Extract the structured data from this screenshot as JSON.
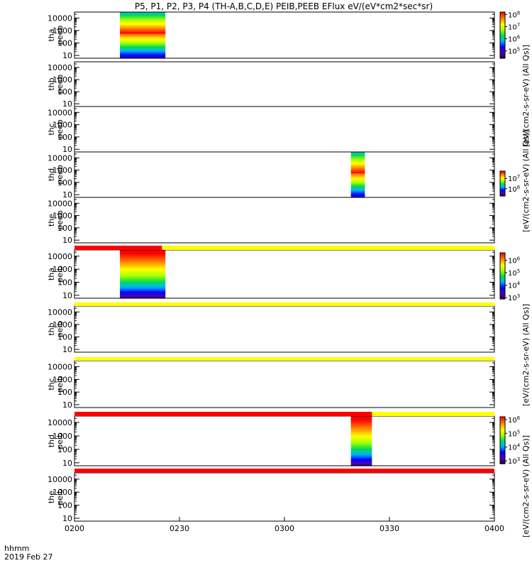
{
  "title": "P5, P1, P2, P3, P4 (TH-A,B,C,D,E) PEIB,PEEB EFlux eV/(eV*cm2*sec*sr)",
  "time_axis": {
    "ticks": [
      "0200",
      "0230",
      "0300",
      "0330",
      "0400"
    ],
    "corner_label": "hhmm",
    "date_label": "2019 Feb 27"
  },
  "colors": {
    "flag_red": "#ff0000",
    "flag_yellow": "#ffff00",
    "frame": "#000000"
  },
  "chart_data": {
    "type": "heatmap",
    "x_unit": "hhmm",
    "x_range": [
      "0200",
      "0400"
    ],
    "y_ticks": [
      "10",
      "100",
      "1000",
      "10000"
    ],
    "y_scale": "log",
    "panels": [
      {
        "label_line1": "tha",
        "label_line2": "peeb",
        "data_start": "0213",
        "data_end": "0226",
        "colorbar": "cb_e1"
      },
      {
        "label_line1": "thb",
        "label_line2": "peeb"
      },
      {
        "label_line1": "thc",
        "label_line2": "peeb"
      },
      {
        "label_line1": "thd",
        "label_line2": "peeb",
        "data_start": "0319",
        "data_end": "0323",
        "colorbar": "cb_e2"
      },
      {
        "label_line1": "the",
        "label_line2": "peeb"
      },
      {
        "label_line1": "tha",
        "label_line2": "peib",
        "data_start": "0213",
        "data_end": "0226",
        "colorbar": "cb_i1"
      },
      {
        "label_line1": "thb",
        "label_line2": "peib"
      },
      {
        "label_line1": "thc",
        "label_line2": "peib"
      },
      {
        "label_line1": "thd",
        "label_line2": "peib",
        "data_start": "0319",
        "data_end": "0325",
        "colorbar": "cb_i2"
      },
      {
        "label_line1": "the",
        "label_line2": "peib"
      }
    ],
    "flag_bars": [
      {
        "after_panel": 5,
        "red_start": "0200",
        "red_end": "0225",
        "yellow_start": "0225",
        "yellow_end": "0400"
      },
      {
        "after_panel": 6,
        "red_start": null,
        "red_end": null,
        "yellow_start": "0200",
        "yellow_end": "0400"
      },
      {
        "after_panel": 7,
        "red_start": null,
        "red_end": null,
        "yellow_start": "0200",
        "yellow_end": "0400"
      },
      {
        "after_panel": 8,
        "red_start": "0200",
        "red_end": "0325",
        "yellow_start": "0325",
        "yellow_end": "0400"
      },
      {
        "after_panel": 9,
        "red_start": "0200",
        "red_end": "0400",
        "yellow_start": null,
        "yellow_end": null
      }
    ],
    "colorbars": {
      "cb_e1": {
        "ticks": [
          {
            "b": "10",
            "e": "5"
          },
          {
            "b": "10",
            "e": "6"
          },
          {
            "b": "10",
            "e": "7"
          },
          {
            "b": "10",
            "e": "8"
          }
        ],
        "log_range": [
          4.4,
          8.2
        ]
      },
      "cb_e2": {
        "ticks": [
          {
            "b": "10",
            "e": "6"
          },
          {
            "b": "10",
            "e": "7"
          }
        ],
        "log_range": [
          5.3,
          7.7
        ]
      },
      "cb_i1": {
        "ticks": [
          {
            "b": "10",
            "e": "3"
          },
          {
            "b": "10",
            "e": "4"
          },
          {
            "b": "10",
            "e": "5"
          },
          {
            "b": "10",
            "e": "6"
          }
        ],
        "log_range": [
          2.9,
          6.6
        ]
      },
      "cb_i2": {
        "ticks": [
          {
            "b": "10",
            "e": "3"
          },
          {
            "b": "10",
            "e": "4"
          },
          {
            "b": "10",
            "e": "5"
          },
          {
            "b": "10",
            "e": "6"
          }
        ],
        "log_range": [
          2.8,
          6.2
        ]
      }
    },
    "side_labels": {
      "label_1": "[eV/(cm2-s-sr-eV) (All Qs)]",
      "label_2": "[eV/(cm2-s-sr-eV) (All Qs)]",
      "label_3": "[eV/(cm2-s-sr-eV) (All Qs)]",
      "label_4": "[eV/(cm2-s-sr-eV) (All Qs)]"
    }
  }
}
